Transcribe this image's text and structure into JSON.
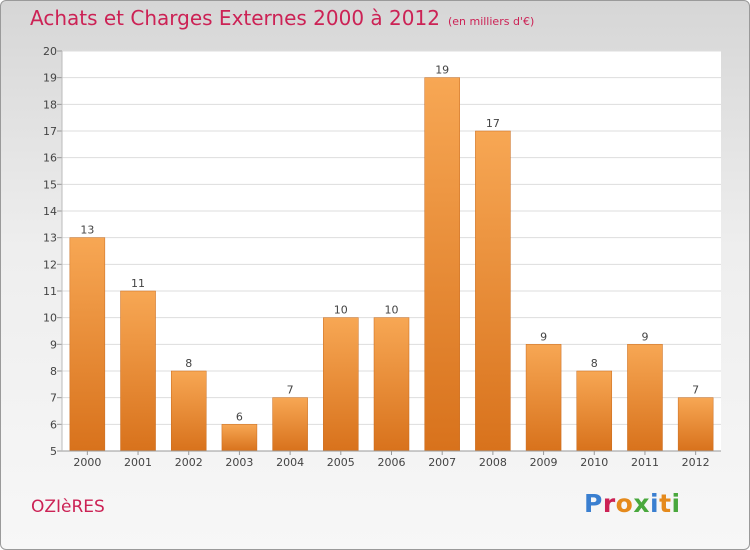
{
  "header": {
    "title": "Achats et Charges Externes 2000 à 2012",
    "subtitle": "(en milliers d'€)"
  },
  "footer": {
    "commune": "OZIèRES",
    "brand": "Proxiti"
  },
  "colors": {
    "bar_top": "#f7a754",
    "bar_bottom": "#d8721c",
    "title": "#cc2255"
  },
  "chart_data": {
    "type": "bar",
    "title": "Achats et Charges Externes 2000 à 2012",
    "subtitle": "(en milliers d'€)",
    "categories": [
      "2000",
      "2001",
      "2002",
      "2003",
      "2004",
      "2005",
      "2006",
      "2007",
      "2008",
      "2009",
      "2010",
      "2011",
      "2012"
    ],
    "values": [
      13,
      11,
      8,
      6,
      7,
      10,
      10,
      19,
      17,
      9,
      8,
      9,
      7
    ],
    "ylim": [
      5,
      20
    ],
    "yticks": [
      5,
      6,
      7,
      8,
      9,
      10,
      11,
      12,
      13,
      14,
      15,
      16,
      17,
      18,
      19,
      20
    ],
    "grid": true,
    "data_labels": true
  }
}
